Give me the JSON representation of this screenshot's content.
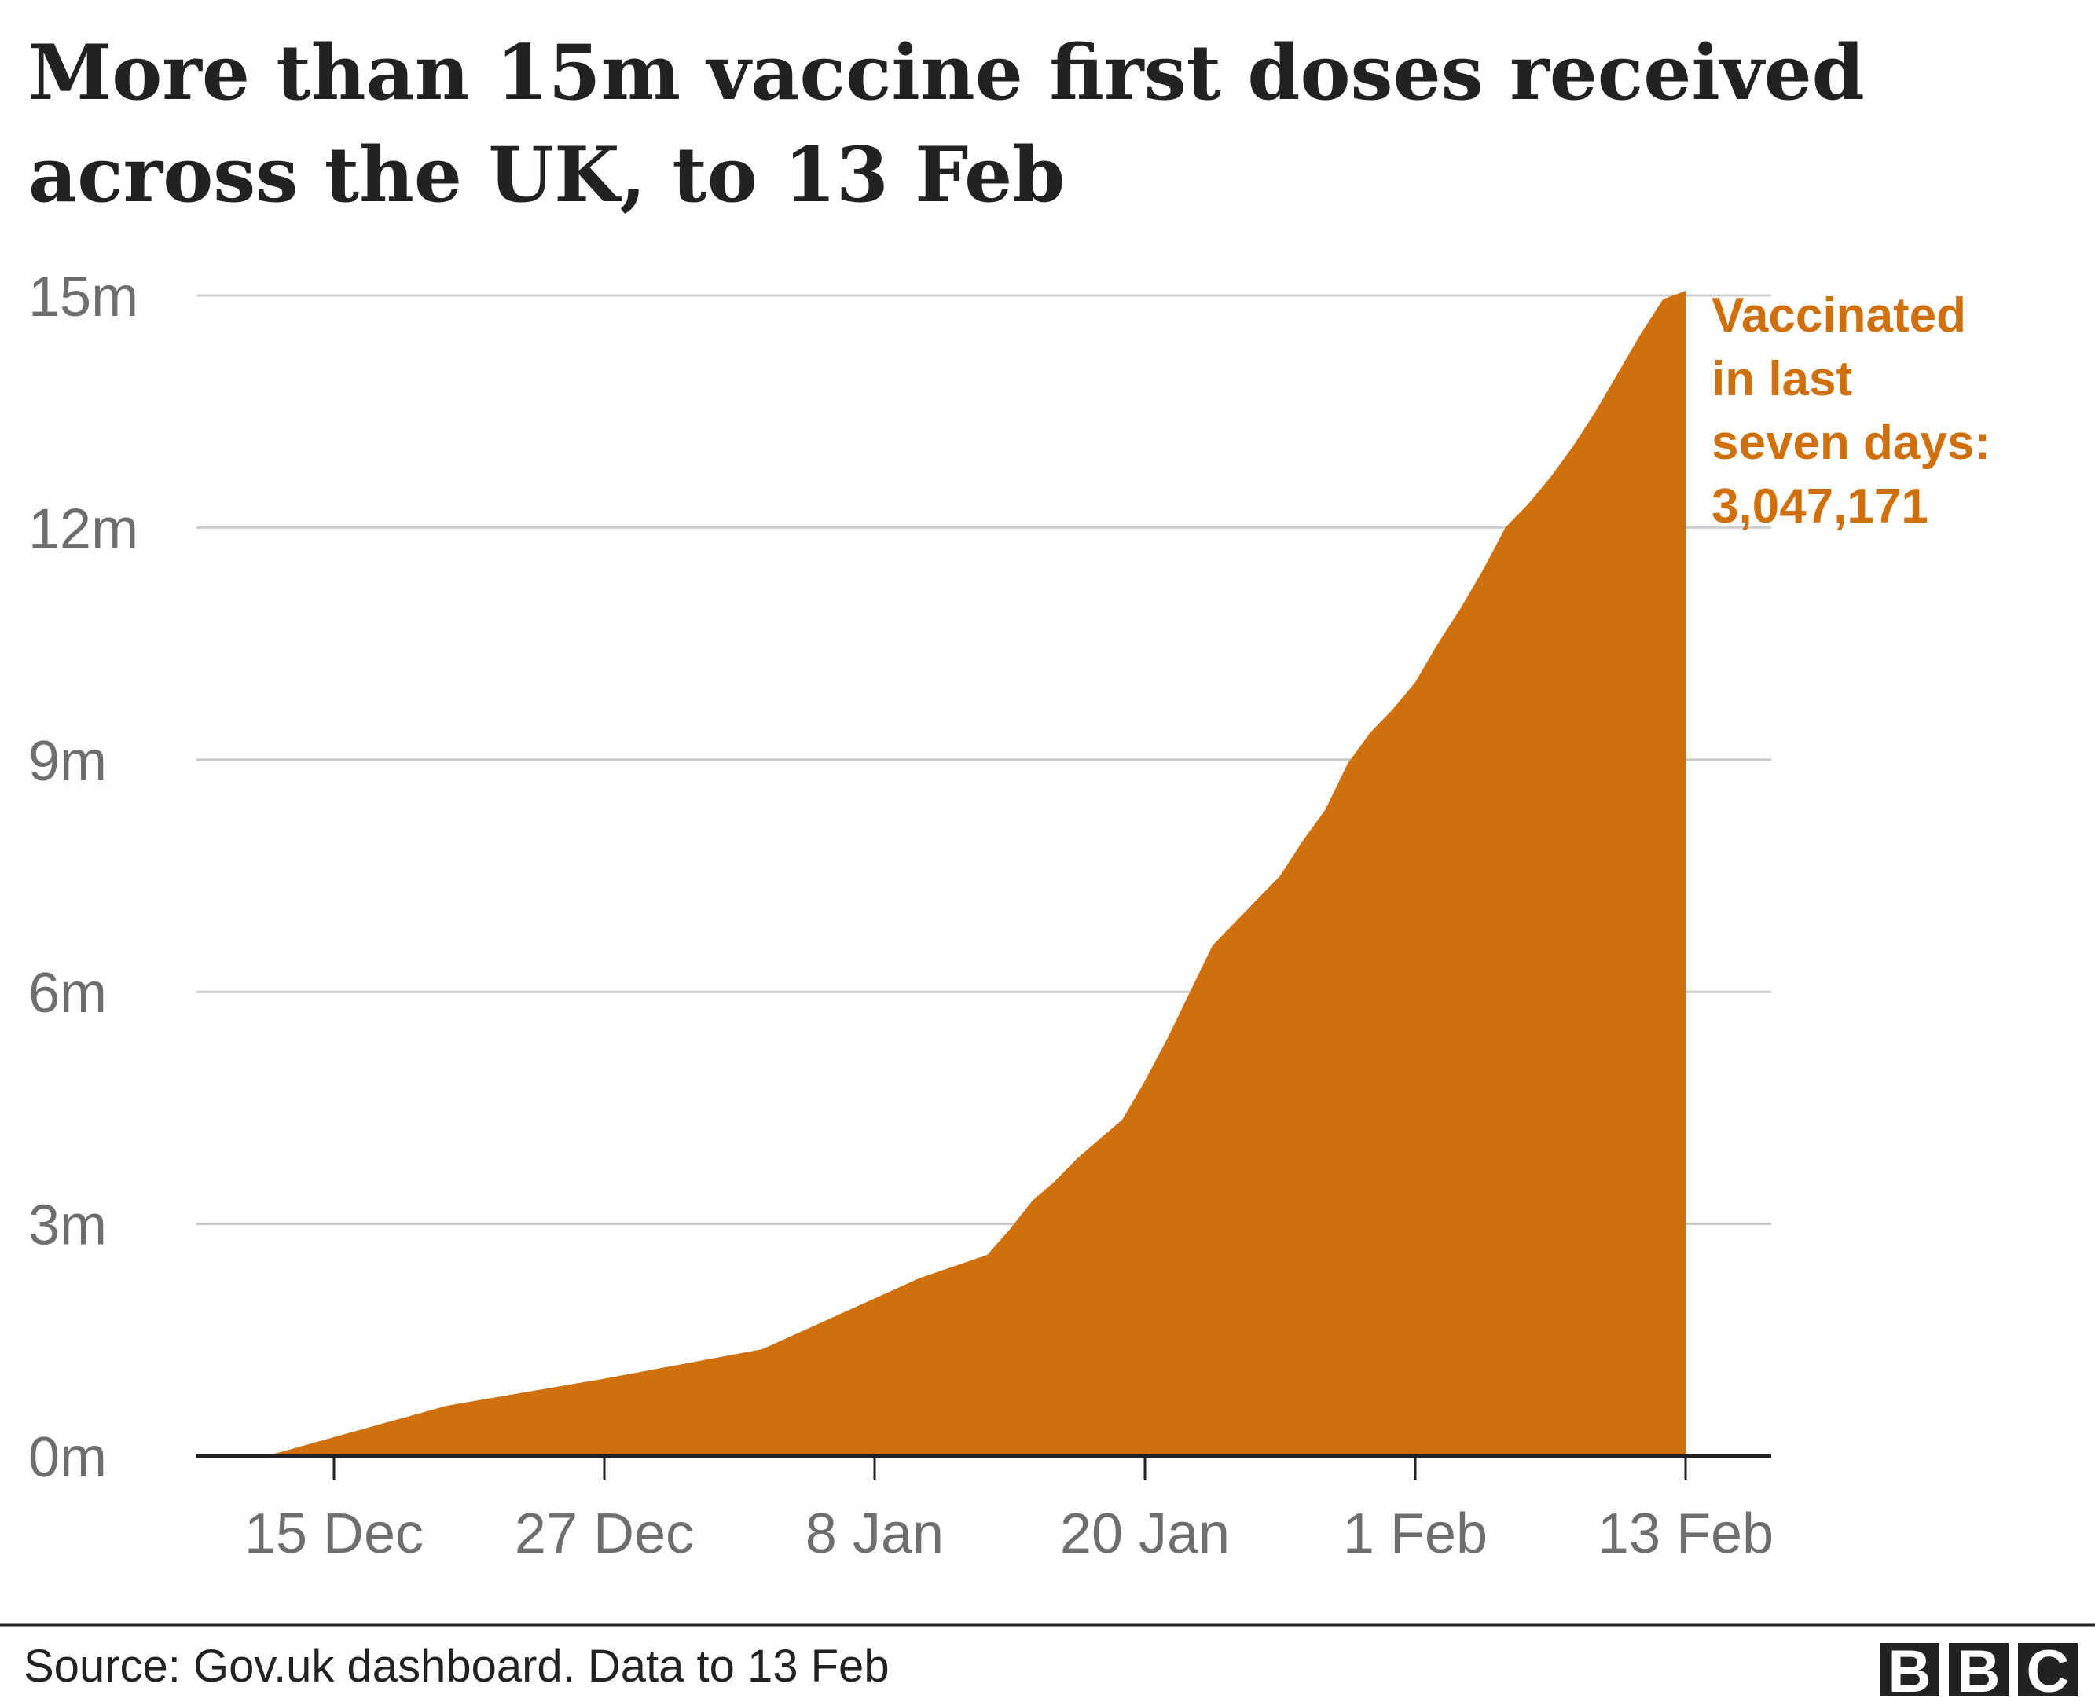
{
  "title_lines": [
    "More than 15m vaccine first doses received",
    "across the UK, to 13 Feb"
  ],
  "annotation_lines": [
    "Vaccinated",
    "in last",
    "seven days:",
    "3,047,171"
  ],
  "source": "Source: Gov.uk dashboard. Data to 13 Feb",
  "logo_letters": [
    "B",
    "B",
    "C"
  ],
  "colors": {
    "fill": "#d0700d",
    "annotation": "#d0700d",
    "grid": "#cccccc",
    "axis": "#222222",
    "logo_bg": "#222222"
  },
  "chart_data": {
    "type": "area",
    "ytick_labels": [
      "0m",
      "3m",
      "6m",
      "9m",
      "12m",
      "15m"
    ],
    "ytick_values": [
      0,
      3,
      6,
      9,
      12,
      15
    ],
    "xtick_labels": [
      "15 Dec",
      "27 Dec",
      "8 Jan",
      "20 Jan",
      "1 Feb",
      "13 Feb"
    ],
    "ylim": [
      0,
      15
    ],
    "grid": true,
    "x": [
      "12 Dec",
      "20 Dec",
      "27 Dec",
      "3 Jan",
      "10 Jan",
      "13 Jan",
      "14 Jan",
      "15 Jan",
      "16 Jan",
      "17 Jan",
      "18 Jan",
      "19 Jan",
      "20 Jan",
      "21 Jan",
      "22 Jan",
      "23 Jan",
      "24 Jan",
      "25 Jan",
      "26 Jan",
      "27 Jan",
      "28 Jan",
      "29 Jan",
      "30 Jan",
      "31 Jan",
      "1 Feb",
      "2 Feb",
      "3 Feb",
      "4 Feb",
      "5 Feb",
      "6 Feb",
      "7 Feb",
      "8 Feb",
      "9 Feb",
      "10 Feb",
      "11 Feb",
      "12 Feb",
      "13 Feb"
    ],
    "values": [
      0,
      0.65,
      1.0,
      1.38,
      2.3,
      2.6,
      2.93,
      3.3,
      3.55,
      3.85,
      4.1,
      4.35,
      4.85,
      5.4,
      6.0,
      6.6,
      6.9,
      7.2,
      7.5,
      7.95,
      8.35,
      8.95,
      9.35,
      9.65,
      10.0,
      10.5,
      10.95,
      11.45,
      12.0,
      12.3,
      12.65,
      13.05,
      13.5,
      14.0,
      14.5,
      14.95,
      15.06
    ],
    "series": [
      {
        "name": "Vaccinated",
        "values_ref": "values"
      }
    ]
  }
}
